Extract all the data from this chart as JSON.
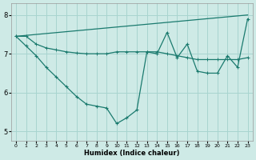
{
  "xlabel": "Humidex (Indice chaleur)",
  "bg_color": "#ceeae6",
  "grid_color": "#a8d4cf",
  "line_color": "#1a7a6e",
  "xlim": [
    -0.5,
    23.5
  ],
  "ylim": [
    4.75,
    8.3
  ],
  "yticks": [
    5,
    6,
    7,
    8
  ],
  "xticks": [
    0,
    1,
    2,
    3,
    4,
    5,
    6,
    7,
    8,
    9,
    10,
    11,
    12,
    13,
    14,
    15,
    16,
    17,
    18,
    19,
    20,
    21,
    22,
    23
  ],
  "line1_x": [
    0,
    23
  ],
  "line1_y": [
    7.45,
    8.0
  ],
  "line2_x": [
    0,
    1,
    2,
    3,
    4,
    5,
    6,
    7,
    8,
    9,
    10,
    11,
    12,
    13,
    14,
    15,
    16,
    17,
    18,
    19,
    20,
    21,
    22,
    23
  ],
  "line2_y": [
    7.45,
    7.45,
    7.25,
    7.15,
    7.1,
    7.05,
    7.02,
    7.0,
    7.0,
    7.0,
    7.05,
    7.05,
    7.05,
    7.05,
    7.05,
    7.0,
    6.95,
    6.9,
    6.85,
    6.85,
    6.85,
    6.85,
    6.85,
    6.9
  ],
  "line3_x": [
    0,
    1,
    2,
    3,
    4,
    5,
    6,
    7,
    8,
    9,
    10,
    11,
    12,
    13,
    14,
    15,
    16,
    17,
    18,
    19,
    20,
    21,
    22,
    23
  ],
  "line3_y": [
    7.45,
    7.2,
    6.95,
    6.65,
    6.4,
    6.15,
    5.9,
    5.7,
    5.65,
    5.6,
    5.2,
    5.35,
    5.55,
    7.05,
    7.0,
    7.55,
    6.9,
    7.25,
    6.55,
    6.5,
    6.5,
    6.95,
    6.65,
    7.9
  ]
}
